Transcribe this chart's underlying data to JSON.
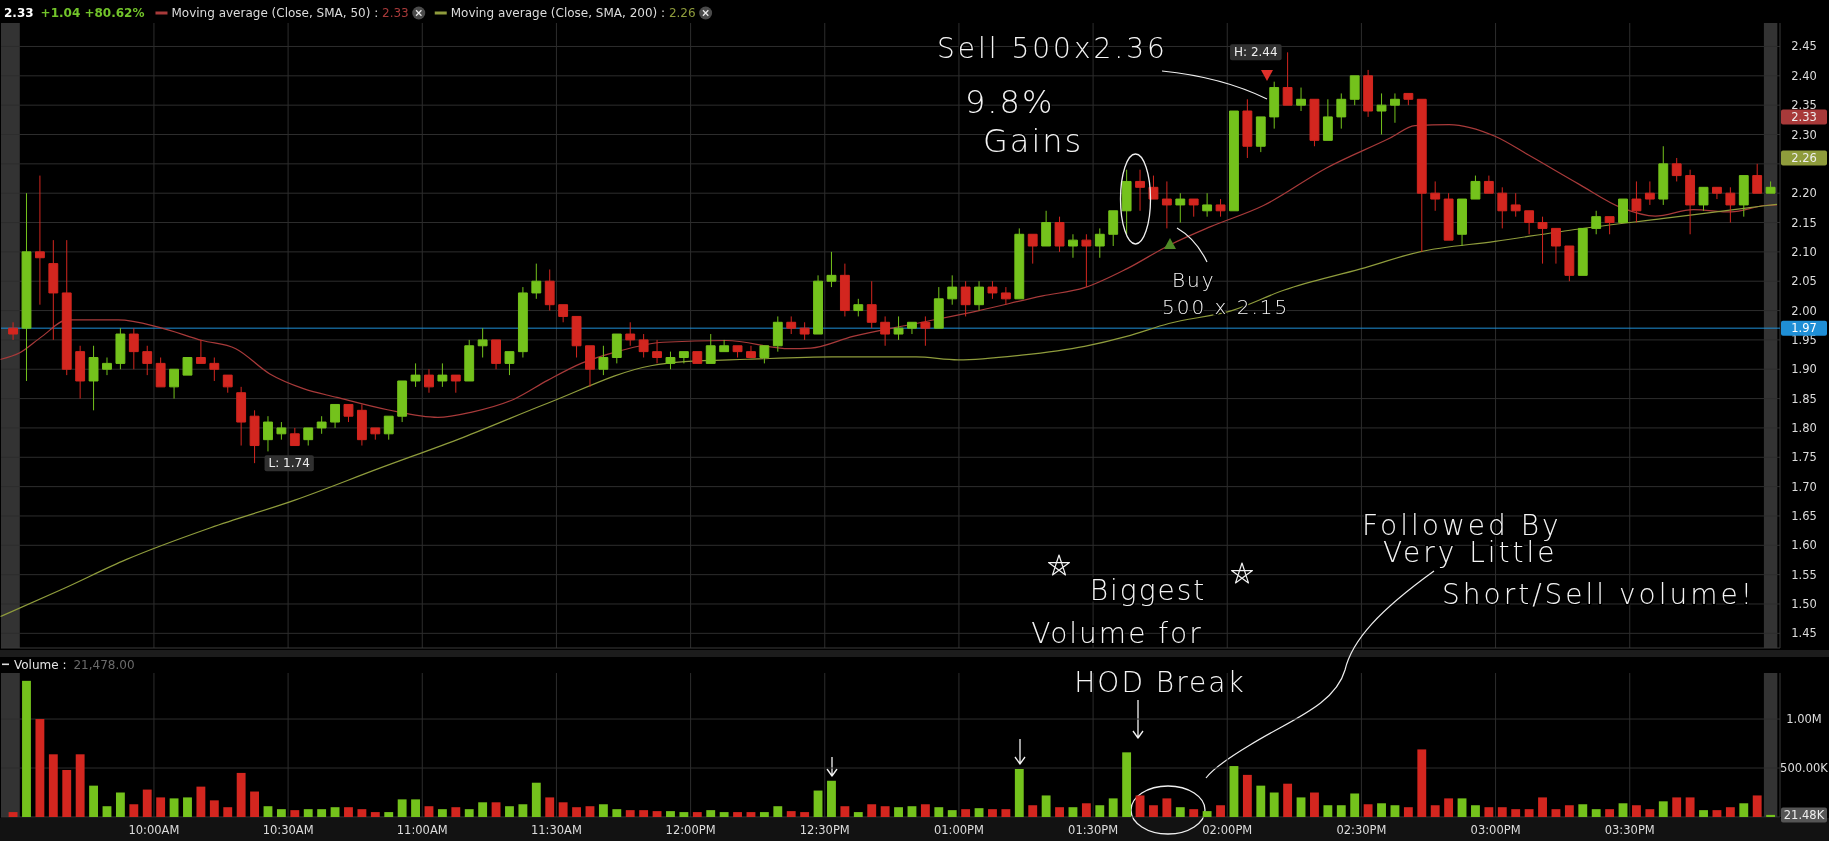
{
  "chart_data": [
    {
      "type": "candlestick",
      "title": "2.33",
      "subtitle": "+1.04 +80.62%",
      "legend": "top",
      "x": [
        9.475,
        9.525,
        9.575,
        9.625,
        9.675,
        9.725,
        9.775,
        9.825,
        9.875,
        9.925,
        9.975,
        10.025,
        10.075,
        10.125,
        10.175,
        10.225,
        10.275,
        10.325,
        10.375,
        10.425,
        10.475,
        10.525,
        10.575,
        10.625,
        10.675,
        10.725,
        10.775,
        10.825,
        10.875,
        10.925,
        10.975,
        11.025,
        11.075,
        11.125,
        11.175,
        11.225,
        11.275,
        11.325,
        11.375,
        11.425,
        11.475,
        11.525,
        11.575,
        11.625,
        11.675,
        11.725,
        11.775,
        11.825,
        11.875,
        11.925,
        11.975,
        12.025,
        12.075,
        12.125,
        12.175,
        12.225,
        12.275,
        12.325,
        12.375,
        12.425,
        12.475,
        12.525,
        12.575,
        12.625,
        12.675,
        12.725,
        12.775,
        12.825,
        12.875,
        12.925,
        12.975,
        13.025,
        13.075,
        13.125,
        13.175,
        13.225,
        13.275,
        13.325,
        13.375,
        13.425,
        13.475,
        13.525,
        13.575,
        13.625,
        13.675,
        13.725,
        13.775,
        13.825,
        13.875,
        13.925,
        13.975,
        14.025,
        14.075,
        14.125,
        14.175,
        14.225,
        14.275,
        14.325,
        14.375,
        14.425,
        14.475,
        14.525,
        14.575,
        14.625,
        14.675,
        14.725,
        14.775,
        14.825,
        14.875,
        14.925,
        14.975,
        15.025,
        15.075,
        15.125,
        15.175,
        15.225,
        15.275,
        15.325,
        15.375,
        15.425,
        15.475,
        15.525,
        15.575,
        15.625,
        15.675,
        15.725,
        15.775,
        15.825,
        15.875,
        15.925,
        15.975,
        16.025
      ],
      "ohlc": [
        [
          1.97,
          1.98,
          1.95,
          1.96
        ],
        [
          1.97,
          2.2,
          1.88,
          2.1
        ],
        [
          2.1,
          2.23,
          2.01,
          2.09
        ],
        [
          2.08,
          2.12,
          1.95,
          2.03
        ],
        [
          2.03,
          2.12,
          1.89,
          1.9
        ],
        [
          1.93,
          1.94,
          1.85,
          1.88
        ],
        [
          1.88,
          1.94,
          1.83,
          1.92
        ],
        [
          1.9,
          1.92,
          1.89,
          1.91
        ],
        [
          1.91,
          1.97,
          1.9,
          1.96
        ],
        [
          1.96,
          1.97,
          1.9,
          1.93
        ],
        [
          1.93,
          1.94,
          1.89,
          1.91
        ],
        [
          1.91,
          1.92,
          1.87,
          1.87
        ],
        [
          1.87,
          1.9,
          1.85,
          1.9
        ],
        [
          1.89,
          1.92,
          1.89,
          1.92
        ],
        [
          1.92,
          1.95,
          1.91,
          1.91
        ],
        [
          1.91,
          1.92,
          1.88,
          1.9
        ],
        [
          1.89,
          1.89,
          1.86,
          1.87
        ],
        [
          1.86,
          1.87,
          1.77,
          1.81
        ],
        [
          1.82,
          1.83,
          1.74,
          1.77
        ],
        [
          1.78,
          1.82,
          1.76,
          1.81
        ],
        [
          1.79,
          1.81,
          1.78,
          1.8
        ],
        [
          1.79,
          1.8,
          1.77,
          1.77
        ],
        [
          1.78,
          1.8,
          1.77,
          1.8
        ],
        [
          1.8,
          1.82,
          1.79,
          1.81
        ],
        [
          1.81,
          1.84,
          1.8,
          1.84
        ],
        [
          1.84,
          1.84,
          1.81,
          1.82
        ],
        [
          1.83,
          1.84,
          1.77,
          1.78
        ],
        [
          1.8,
          1.8,
          1.78,
          1.79
        ],
        [
          1.79,
          1.82,
          1.78,
          1.82
        ],
        [
          1.82,
          1.88,
          1.81,
          1.88
        ],
        [
          1.88,
          1.91,
          1.87,
          1.89
        ],
        [
          1.89,
          1.9,
          1.86,
          1.87
        ],
        [
          1.88,
          1.91,
          1.87,
          1.89
        ],
        [
          1.89,
          1.89,
          1.86,
          1.88
        ],
        [
          1.88,
          1.95,
          1.88,
          1.94
        ],
        [
          1.94,
          1.97,
          1.92,
          1.95
        ],
        [
          1.95,
          1.95,
          1.9,
          1.91
        ],
        [
          1.91,
          1.93,
          1.89,
          1.93
        ],
        [
          1.93,
          2.04,
          1.92,
          2.03
        ],
        [
          2.03,
          2.08,
          2.02,
          2.05
        ],
        [
          2.05,
          2.07,
          2.0,
          2.01
        ],
        [
          2.01,
          2.01,
          1.98,
          1.99
        ],
        [
          1.99,
          1.99,
          1.92,
          1.94
        ],
        [
          1.94,
          1.94,
          1.87,
          1.9
        ],
        [
          1.9,
          1.94,
          1.89,
          1.92
        ],
        [
          1.92,
          1.96,
          1.91,
          1.96
        ],
        [
          1.96,
          1.98,
          1.94,
          1.95
        ],
        [
          1.95,
          1.96,
          1.92,
          1.93
        ],
        [
          1.93,
          1.95,
          1.91,
          1.92
        ],
        [
          1.91,
          1.93,
          1.9,
          1.92
        ],
        [
          1.92,
          1.93,
          1.91,
          1.93
        ],
        [
          1.93,
          1.93,
          1.91,
          1.91
        ],
        [
          1.91,
          1.96,
          1.91,
          1.94
        ],
        [
          1.93,
          1.95,
          1.93,
          1.94
        ],
        [
          1.94,
          1.94,
          1.92,
          1.93
        ],
        [
          1.93,
          1.94,
          1.92,
          1.92
        ],
        [
          1.92,
          1.94,
          1.91,
          1.94
        ],
        [
          1.94,
          1.99,
          1.93,
          1.98
        ],
        [
          1.98,
          1.99,
          1.96,
          1.97
        ],
        [
          1.97,
          1.98,
          1.95,
          1.96
        ],
        [
          1.96,
          2.06,
          1.96,
          2.05
        ],
        [
          2.05,
          2.1,
          2.04,
          2.06
        ],
        [
          2.06,
          2.08,
          1.99,
          2.0
        ],
        [
          2.0,
          2.02,
          1.99,
          2.01
        ],
        [
          2.01,
          2.05,
          1.97,
          1.98
        ],
        [
          1.98,
          1.99,
          1.94,
          1.96
        ],
        [
          1.96,
          1.99,
          1.95,
          1.97
        ],
        [
          1.97,
          1.98,
          1.96,
          1.98
        ],
        [
          1.98,
          1.99,
          1.94,
          1.97
        ],
        [
          1.97,
          2.04,
          1.97,
          2.02
        ],
        [
          2.02,
          2.06,
          2.01,
          2.04
        ],
        [
          2.04,
          2.05,
          1.99,
          2.01
        ],
        [
          2.01,
          2.05,
          2.0,
          2.04
        ],
        [
          2.04,
          2.05,
          2.02,
          2.03
        ],
        [
          2.03,
          2.04,
          2.01,
          2.02
        ],
        [
          2.02,
          2.14,
          2.02,
          2.13
        ],
        [
          2.13,
          2.13,
          2.08,
          2.11
        ],
        [
          2.11,
          2.17,
          2.11,
          2.15
        ],
        [
          2.15,
          2.16,
          2.1,
          2.11
        ],
        [
          2.11,
          2.13,
          2.09,
          2.12
        ],
        [
          2.12,
          2.13,
          2.04,
          2.11
        ],
        [
          2.11,
          2.14,
          2.09,
          2.13
        ],
        [
          2.13,
          2.17,
          2.11,
          2.17
        ],
        [
          2.17,
          2.24,
          2.13,
          2.22
        ],
        [
          2.22,
          2.24,
          2.17,
          2.21
        ],
        [
          2.21,
          2.23,
          2.19,
          2.19
        ],
        [
          2.19,
          2.22,
          2.14,
          2.18
        ],
        [
          2.18,
          2.2,
          2.15,
          2.19
        ],
        [
          2.19,
          2.19,
          2.16,
          2.18
        ],
        [
          2.17,
          2.2,
          2.16,
          2.18
        ],
        [
          2.18,
          2.19,
          2.16,
          2.17
        ],
        [
          2.17,
          2.34,
          2.17,
          2.34
        ],
        [
          2.34,
          2.36,
          2.26,
          2.28
        ],
        [
          2.28,
          2.33,
          2.27,
          2.33
        ],
        [
          2.33,
          2.39,
          2.31,
          2.38
        ],
        [
          2.38,
          2.44,
          2.35,
          2.35
        ],
        [
          2.35,
          2.38,
          2.34,
          2.36
        ],
        [
          2.36,
          2.36,
          2.28,
          2.29
        ],
        [
          2.29,
          2.36,
          2.29,
          2.33
        ],
        [
          2.33,
          2.37,
          2.31,
          2.36
        ],
        [
          2.36,
          2.4,
          2.35,
          2.4
        ],
        [
          2.4,
          2.41,
          2.33,
          2.34
        ],
        [
          2.34,
          2.37,
          2.3,
          2.35
        ],
        [
          2.35,
          2.37,
          2.32,
          2.36
        ],
        [
          2.37,
          2.37,
          2.35,
          2.36
        ],
        [
          2.36,
          2.36,
          2.1,
          2.2
        ],
        [
          2.2,
          2.22,
          2.17,
          2.19
        ],
        [
          2.19,
          2.2,
          2.12,
          2.12
        ],
        [
          2.13,
          2.19,
          2.11,
          2.19
        ],
        [
          2.19,
          2.23,
          2.19,
          2.22
        ],
        [
          2.22,
          2.23,
          2.2,
          2.2
        ],
        [
          2.2,
          2.21,
          2.14,
          2.17
        ],
        [
          2.18,
          2.2,
          2.16,
          2.17
        ],
        [
          2.17,
          2.17,
          2.13,
          2.15
        ],
        [
          2.15,
          2.16,
          2.08,
          2.14
        ],
        [
          2.14,
          2.14,
          2.08,
          2.11
        ],
        [
          2.11,
          2.11,
          2.05,
          2.06
        ],
        [
          2.06,
          2.14,
          2.06,
          2.14
        ],
        [
          2.14,
          2.17,
          2.13,
          2.16
        ],
        [
          2.16,
          2.16,
          2.13,
          2.15
        ],
        [
          2.15,
          2.19,
          2.15,
          2.19
        ],
        [
          2.19,
          2.22,
          2.15,
          2.17
        ],
        [
          2.2,
          2.22,
          2.18,
          2.19
        ],
        [
          2.19,
          2.28,
          2.18,
          2.25
        ],
        [
          2.25,
          2.26,
          2.22,
          2.23
        ],
        [
          2.23,
          2.24,
          2.13,
          2.18
        ],
        [
          2.18,
          2.21,
          2.17,
          2.21
        ],
        [
          2.21,
          2.21,
          2.19,
          2.2
        ],
        [
          2.2,
          2.21,
          2.15,
          2.18
        ],
        [
          2.18,
          2.23,
          2.16,
          2.23
        ],
        [
          2.23,
          2.25,
          2.2,
          2.2
        ],
        [
          2.2,
          2.22,
          2.2,
          2.21
        ]
      ],
      "colors": [
        "#d3261f",
        "#74c21c",
        "#d3261f",
        "#d3261f",
        "#d3261f",
        "#d3261f",
        "#74c21c",
        "#74c21c",
        "#74c21c",
        "#d3261f",
        "#d3261f",
        "#d3261f",
        "#74c21c",
        "#74c21c",
        "#d3261f",
        "#d3261f",
        "#d3261f",
        "#d3261f",
        "#d3261f",
        "#74c21c",
        "#74c21c",
        "#d3261f",
        "#74c21c",
        "#74c21c",
        "#74c21c",
        "#d3261f",
        "#d3261f",
        "#d3261f",
        "#74c21c",
        "#74c21c",
        "#74c21c",
        "#d3261f",
        "#74c21c",
        "#d3261f",
        "#74c21c",
        "#74c21c",
        "#d3261f",
        "#74c21c",
        "#74c21c",
        "#74c21c",
        "#d3261f",
        "#d3261f",
        "#d3261f",
        "#d3261f",
        "#74c21c",
        "#74c21c",
        "#d3261f",
        "#d3261f",
        "#d3261f",
        "#74c21c",
        "#74c21c",
        "#d3261f",
        "#74c21c",
        "#74c21c",
        "#d3261f",
        "#d3261f",
        "#74c21c",
        "#74c21c",
        "#d3261f",
        "#d3261f",
        "#74c21c",
        "#74c21c",
        "#d3261f",
        "#74c21c",
        "#d3261f",
        "#d3261f",
        "#74c21c",
        "#74c21c",
        "#d3261f",
        "#74c21c",
        "#74c21c",
        "#d3261f",
        "#74c21c",
        "#d3261f",
        "#d3261f",
        "#74c21c",
        "#d3261f",
        "#74c21c",
        "#d3261f",
        "#74c21c",
        "#d3261f",
        "#74c21c",
        "#74c21c",
        "#74c21c",
        "#d3261f",
        "#d3261f",
        "#d3261f",
        "#74c21c",
        "#d3261f",
        "#74c21c",
        "#d3261f",
        "#74c21c",
        "#d3261f",
        "#74c21c",
        "#74c21c",
        "#d3261f",
        "#74c21c",
        "#d3261f",
        "#74c21c",
        "#74c21c",
        "#74c21c",
        "#d3261f",
        "#74c21c",
        "#74c21c",
        "#d3261f",
        "#d3261f",
        "#d3261f",
        "#d3261f",
        "#74c21c",
        "#74c21c",
        "#d3261f",
        "#d3261f",
        "#d3261f",
        "#d3261f",
        "#d3261f",
        "#d3261f",
        "#d3261f",
        "#74c21c",
        "#74c21c",
        "#d3261f",
        "#74c21c",
        "#d3261f",
        "#d3261f",
        "#74c21c",
        "#d3261f",
        "#d3261f",
        "#74c21c",
        "#d3261f",
        "#d3261f",
        "#74c21c",
        "#d3261f",
        "#74c21c"
      ],
      "series": [
        {
          "type": "line",
          "name": "Moving average (Close, SMA, 50) : 2.33",
          "color": "#a83a3a",
          "x": [
            9.43,
            9.5,
            9.583,
            9.678,
            9.867,
            10.023,
            10.18,
            10.305,
            10.432,
            10.557,
            10.682,
            10.87,
            11.058,
            11.185,
            11.342,
            11.467,
            11.592,
            11.733,
            11.898,
            12.133,
            12.37,
            12.448,
            12.605,
            12.84,
            13.075,
            13.312,
            13.468,
            13.625,
            13.782,
            13.938,
            14.135,
            14.37,
            14.607,
            14.7,
            14.827,
            14.998,
            15.123,
            15.312,
            15.47,
            15.595,
            15.737,
            15.877,
            16.003,
            16.047
          ],
          "values": [
            1.917,
            1.928,
            1.956,
            1.984,
            1.984,
            1.971,
            1.949,
            1.935,
            1.892,
            1.867,
            1.852,
            1.831,
            1.818,
            1.827,
            1.849,
            1.881,
            1.91,
            1.931,
            1.946,
            1.949,
            1.935,
            1.936,
            1.956,
            1.978,
            2.0,
            2.025,
            2.039,
            2.071,
            2.111,
            2.143,
            2.179,
            2.243,
            2.294,
            2.315,
            2.317,
            2.297,
            2.265,
            2.215,
            2.175,
            2.161,
            2.172,
            2.168,
            2.179,
            2.18
          ]
        },
        {
          "type": "line",
          "name": "Moving average (Close, SMA, 200) : 2.26",
          "color": "#8f9c3c",
          "x": [
            9.43,
            9.662,
            9.898,
            10.211,
            10.525,
            10.839,
            11.153,
            11.467,
            11.852,
            11.977,
            12.213,
            12.527,
            12.84,
            12.997,
            13.233,
            13.468,
            13.625,
            13.782,
            14.017,
            14.213,
            14.497,
            14.717,
            14.998,
            15.312,
            15.627,
            15.94,
            16.047
          ],
          "values": [
            1.479,
            1.526,
            1.576,
            1.63,
            1.677,
            1.731,
            1.784,
            1.842,
            1.906,
            1.913,
            1.917,
            1.921,
            1.921,
            1.916,
            1.924,
            1.939,
            1.956,
            1.978,
            2.0,
            2.035,
            2.071,
            2.1,
            2.118,
            2.139,
            2.157,
            2.175,
            2.181
          ]
        }
      ],
      "xlim": [
        9.43,
        16.06
      ],
      "ylim": [
        1.425,
        2.49
      ],
      "xticks": [
        {
          "value": 10,
          "label": null
        },
        {
          "value": 10.5,
          "label": null
        },
        {
          "value": 11,
          "label": null
        },
        {
          "value": 11.5,
          "label": null
        },
        {
          "value": 12,
          "label": null
        },
        {
          "value": 12.5,
          "label": null
        },
        {
          "value": 13,
          "label": null
        },
        {
          "value": 13.5,
          "label": null
        },
        {
          "value": 14,
          "label": null
        },
        {
          "value": 14.5,
          "label": null
        },
        {
          "value": 15,
          "label": null
        },
        {
          "value": 15.5,
          "label": null
        }
      ],
      "yticks": [
        1.45,
        {
          "value": 1.5,
          "label": "1.50"
        },
        1.55,
        {
          "value": 1.6,
          "label": "1.60"
        },
        1.65,
        {
          "value": 1.7,
          "label": "1.70"
        },
        1.75,
        {
          "value": 1.8,
          "label": "1.80"
        },
        1.85,
        {
          "value": 1.9,
          "label": "1.90"
        },
        1.95,
        {
          "value": 2,
          "label": "2.00"
        },
        2.05,
        {
          "value": 2.1,
          "label": "2.10"
        },
        2.15,
        {
          "value": 2.2,
          "label": "2.20"
        },
        {
          "value": 2.25,
          "label": null
        },
        {
          "value": 2.3,
          "label": "2.30"
        },
        2.35,
        {
          "value": 2.4,
          "label": "2.40"
        },
        2.45
      ],
      "tick_labels": "y",
      "grid": true,
      "ref_lines": [
        {
          "axis": "y",
          "value": 1.97,
          "label": "1.97",
          "color": "#1f8fd6"
        }
      ],
      "bands": [
        {
          "axis": "x",
          "from": 9.43,
          "to": 9.5,
          "color": "#333333"
        },
        {
          "axis": "x",
          "from": 16,
          "to": 16.05,
          "color": "#333333"
        }
      ],
      "annotations": [
        {
          "text": "H: 2.44",
          "x": 14.225,
          "y": 2.44
        },
        {
          "text": "L: 1.74",
          "x": 10.375,
          "y": 1.74
        },
        "Sell 500x2.36",
        "Buy\n500 x 2.15",
        "9.8%\nGains",
        "Biggest\nVolume for\nHOD Break",
        "Followed By\nVery Little\nShort/Sell volume!",
        "2.33",
        "2.26"
      ]
    },
    {
      "type": "bar",
      "title": "Volume :",
      "subtitle": "21,478.00",
      "x": [
        9.475,
        9.525,
        9.575,
        9.625,
        9.675,
        9.725,
        9.775,
        9.825,
        9.875,
        9.925,
        9.975,
        10.025,
        10.075,
        10.125,
        10.175,
        10.225,
        10.275,
        10.325,
        10.375,
        10.425,
        10.475,
        10.525,
        10.575,
        10.625,
        10.675,
        10.725,
        10.775,
        10.825,
        10.875,
        10.925,
        10.975,
        11.025,
        11.075,
        11.125,
        11.175,
        11.225,
        11.275,
        11.325,
        11.375,
        11.425,
        11.475,
        11.525,
        11.575,
        11.625,
        11.675,
        11.725,
        11.775,
        11.825,
        11.875,
        11.925,
        11.975,
        12.025,
        12.075,
        12.125,
        12.175,
        12.225,
        12.275,
        12.325,
        12.375,
        12.425,
        12.475,
        12.525,
        12.575,
        12.625,
        12.675,
        12.725,
        12.775,
        12.825,
        12.875,
        12.925,
        12.975,
        13.025,
        13.075,
        13.125,
        13.175,
        13.225,
        13.275,
        13.325,
        13.375,
        13.425,
        13.475,
        13.525,
        13.575,
        13.625,
        13.675,
        13.725,
        13.775,
        13.825,
        13.875,
        13.925,
        13.975,
        14.025,
        14.075,
        14.125,
        14.175,
        14.225,
        14.275,
        14.325,
        14.375,
        14.425,
        14.475,
        14.525,
        14.575,
        14.625,
        14.675,
        14.725,
        14.775,
        14.825,
        14.875,
        14.925,
        14.975,
        15.025,
        15.075,
        15.125,
        15.175,
        15.225,
        15.275,
        15.325,
        15.375,
        15.425,
        15.475,
        15.525,
        15.575,
        15.625,
        15.675,
        15.725,
        15.775,
        15.825,
        15.875,
        15.925,
        15.975,
        16.025
      ],
      "values": [
        50000,
        1390000,
        1000000,
        640000,
        480000,
        640000,
        320000,
        110000,
        250000,
        130000,
        280000,
        200000,
        190000,
        200000,
        310000,
        170000,
        100000,
        450000,
        260000,
        110000,
        80000,
        70000,
        80000,
        80000,
        100000,
        100000,
        80000,
        50000,
        50000,
        180000,
        180000,
        110000,
        80000,
        100000,
        80000,
        150000,
        150000,
        110000,
        130000,
        350000,
        200000,
        150000,
        100000,
        110000,
        130000,
        80000,
        70000,
        70000,
        60000,
        60000,
        50000,
        50000,
        70000,
        50000,
        50000,
        50000,
        50000,
        110000,
        60000,
        50000,
        270000,
        370000,
        110000,
        50000,
        130000,
        110000,
        100000,
        110000,
        130000,
        100000,
        70000,
        80000,
        90000,
        80000,
        80000,
        490000,
        120000,
        220000,
        100000,
        100000,
        140000,
        120000,
        190000,
        660000,
        220000,
        120000,
        190000,
        100000,
        80000,
        60000,
        120000,
        520000,
        430000,
        320000,
        250000,
        340000,
        200000,
        250000,
        120000,
        120000,
        240000,
        130000,
        140000,
        120000,
        100000,
        690000,
        120000,
        190000,
        190000,
        120000,
        100000,
        100000,
        80000,
        80000,
        200000,
        80000,
        120000,
        130000,
        80000,
        80000,
        140000,
        120000,
        80000,
        160000,
        200000,
        200000,
        70000,
        70000,
        100000,
        140000,
        220000,
        21478
      ],
      "colors": [
        "#d3261f",
        "#74c21c",
        "#d3261f",
        "#d3261f",
        "#d3261f",
        "#d3261f",
        "#74c21c",
        "#74c21c",
        "#74c21c",
        "#d3261f",
        "#d3261f",
        "#d3261f",
        "#74c21c",
        "#74c21c",
        "#d3261f",
        "#d3261f",
        "#d3261f",
        "#d3261f",
        "#d3261f",
        "#74c21c",
        "#74c21c",
        "#d3261f",
        "#74c21c",
        "#74c21c",
        "#74c21c",
        "#d3261f",
        "#d3261f",
        "#d3261f",
        "#74c21c",
        "#74c21c",
        "#74c21c",
        "#d3261f",
        "#74c21c",
        "#d3261f",
        "#74c21c",
        "#74c21c",
        "#d3261f",
        "#74c21c",
        "#74c21c",
        "#74c21c",
        "#d3261f",
        "#d3261f",
        "#d3261f",
        "#d3261f",
        "#74c21c",
        "#74c21c",
        "#d3261f",
        "#d3261f",
        "#d3261f",
        "#74c21c",
        "#74c21c",
        "#d3261f",
        "#74c21c",
        "#74c21c",
        "#d3261f",
        "#d3261f",
        "#74c21c",
        "#74c21c",
        "#d3261f",
        "#d3261f",
        "#74c21c",
        "#74c21c",
        "#d3261f",
        "#74c21c",
        "#d3261f",
        "#d3261f",
        "#74c21c",
        "#74c21c",
        "#d3261f",
        "#74c21c",
        "#74c21c",
        "#d3261f",
        "#74c21c",
        "#d3261f",
        "#d3261f",
        "#74c21c",
        "#d3261f",
        "#74c21c",
        "#d3261f",
        "#74c21c",
        "#d3261f",
        "#74c21c",
        "#74c21c",
        "#74c21c",
        "#d3261f",
        "#d3261f",
        "#d3261f",
        "#74c21c",
        "#d3261f",
        "#74c21c",
        "#d3261f",
        "#74c21c",
        "#d3261f",
        "#74c21c",
        "#74c21c",
        "#d3261f",
        "#74c21c",
        "#d3261f",
        "#74c21c",
        "#74c21c",
        "#74c21c",
        "#d3261f",
        "#74c21c",
        "#74c21c",
        "#d3261f",
        "#d3261f",
        "#d3261f",
        "#d3261f",
        "#74c21c",
        "#74c21c",
        "#d3261f",
        "#d3261f",
        "#d3261f",
        "#d3261f",
        "#d3261f",
        "#d3261f",
        "#d3261f",
        "#74c21c",
        "#74c21c",
        "#d3261f",
        "#74c21c",
        "#d3261f",
        "#d3261f",
        "#74c21c",
        "#d3261f",
        "#d3261f",
        "#74c21c",
        "#d3261f",
        "#d3261f",
        "#74c21c",
        "#d3261f",
        "#74c21c"
      ],
      "xlim": [
        9.43,
        16.06
      ],
      "ylim": [
        0,
        1470000
      ],
      "xticks": [
        {
          "value": 10,
          "label": "10:00AM"
        },
        {
          "value": 10.5,
          "label": "10:30AM"
        },
        {
          "value": 11,
          "label": "11:00AM"
        },
        {
          "value": 11.5,
          "label": "11:30AM"
        },
        {
          "value": 12,
          "label": "12:00PM"
        },
        {
          "value": 12.5,
          "label": "12:30PM"
        },
        {
          "value": 13,
          "label": "01:00PM"
        },
        {
          "value": 13.5,
          "label": "01:30PM"
        },
        {
          "value": 14,
          "label": "02:00PM"
        },
        {
          "value": 14.5,
          "label": "02:30PM"
        },
        {
          "value": 15,
          "label": "03:00PM"
        },
        {
          "value": 15.5,
          "label": "03:30PM"
        }
      ],
      "yticks": [
        {
          "value": 500000,
          "label": "500.00K"
        },
        {
          "value": 1000000,
          "label": "1.00M"
        }
      ],
      "grid": true,
      "bands": [
        {
          "axis": "x",
          "from": 9.43,
          "to": 9.5,
          "color": "#333333"
        },
        {
          "axis": "x",
          "from": 16,
          "to": 16.05,
          "color": "#333333"
        }
      ],
      "annotations": [
        "21.48K"
      ]
    }
  ]
}
